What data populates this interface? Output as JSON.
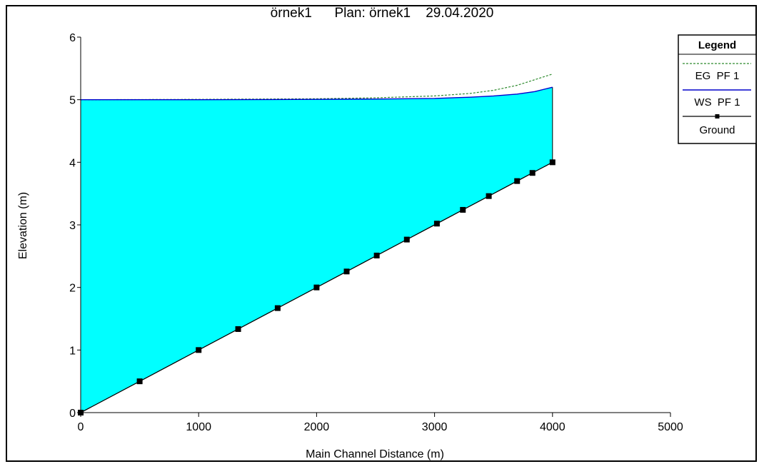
{
  "chart_data": {
    "type": "area",
    "title": "örnek1      Plan: örnek1    29.04.2020",
    "xlabel": "Main Channel Distance (m)",
    "ylabel": "Elevation (m)",
    "xlim": [
      0,
      5000
    ],
    "ylim": [
      0,
      6
    ],
    "x_ticks": [
      0,
      1000,
      2000,
      3000,
      4000,
      5000
    ],
    "y_ticks": [
      0,
      1,
      2,
      3,
      4,
      5,
      6
    ],
    "grid": false,
    "legend_position": "right",
    "legend_title": "Legend",
    "fill_color": "#00ffff",
    "series": [
      {
        "name": "EG  PF 1",
        "style": "dashed",
        "color": "#2e8b2e",
        "x": [
          0,
          1000,
          2000,
          2500,
          3000,
          3300,
          3500,
          3700,
          3850,
          4000
        ],
        "y": [
          5.0,
          5.005,
          5.015,
          5.03,
          5.06,
          5.1,
          5.15,
          5.23,
          5.32,
          5.41
        ]
      },
      {
        "name": "WS  PF 1",
        "style": "solid",
        "color": "#0000cc",
        "x": [
          0,
          1000,
          2000,
          2500,
          3000,
          3300,
          3500,
          3700,
          3850,
          4000
        ],
        "y": [
          5.0,
          5.0,
          5.005,
          5.01,
          5.02,
          5.04,
          5.06,
          5.09,
          5.13,
          5.2
        ]
      },
      {
        "name": "Ground",
        "style": "solid-markers",
        "color": "#000000",
        "x": [
          0,
          500,
          1000,
          1335,
          1670,
          2000,
          2255,
          2510,
          2765,
          3020,
          3240,
          3460,
          3700,
          3830,
          4000
        ],
        "y": [
          0.0,
          0.5,
          1.0,
          1.335,
          1.67,
          2.0,
          2.255,
          2.51,
          2.765,
          3.02,
          3.24,
          3.46,
          3.7,
          3.83,
          4.0
        ]
      }
    ]
  }
}
